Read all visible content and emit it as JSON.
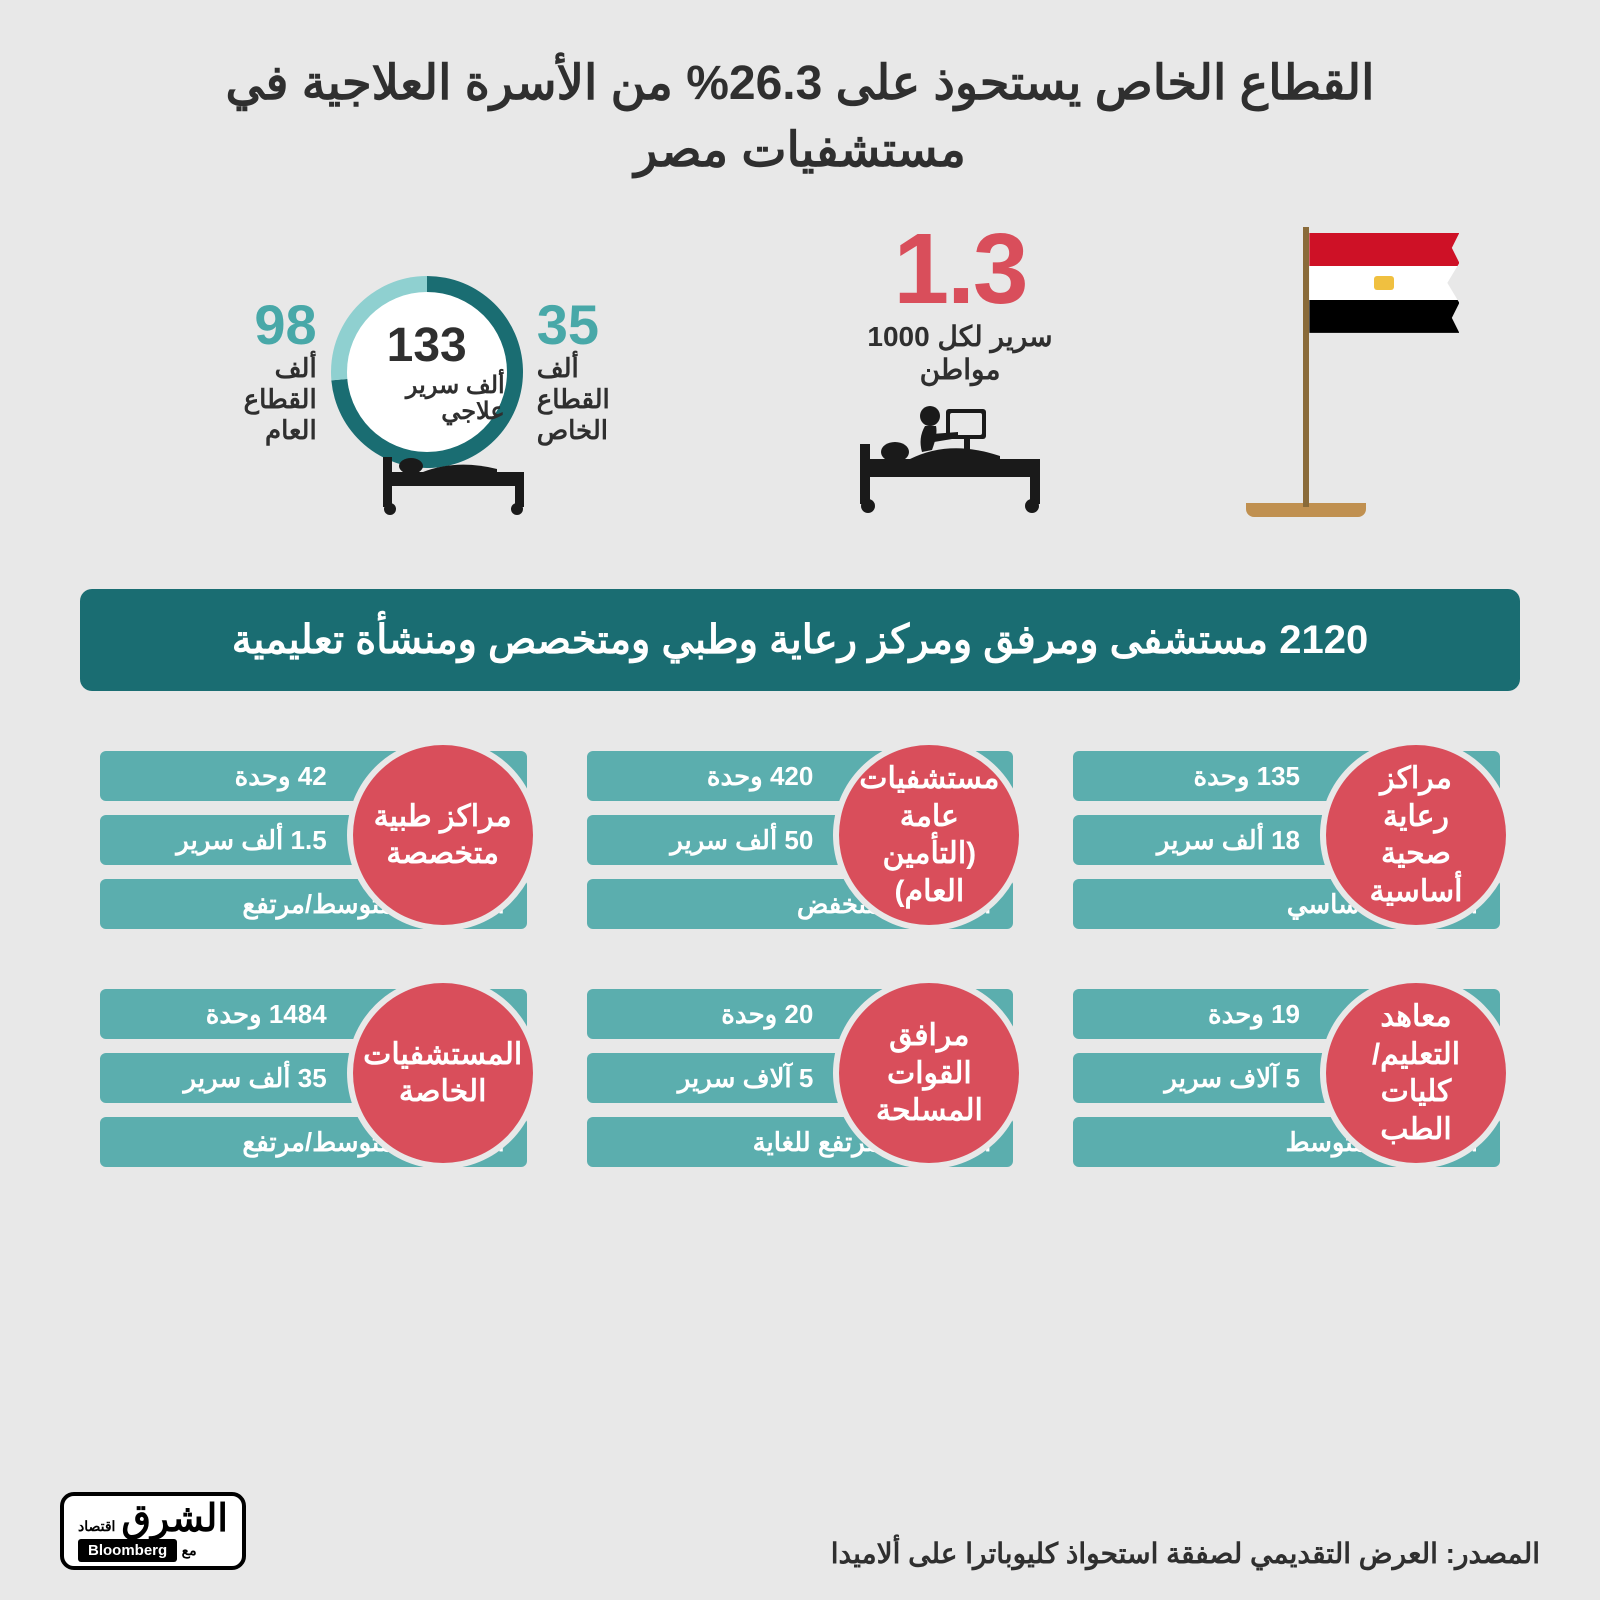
{
  "colors": {
    "background": "#e8e8e8",
    "title_text": "#2f2f2f",
    "accent_red": "#d94e5b",
    "teal_bar": "#5baeae",
    "banner_teal": "#1a6d72",
    "donut_teal": "#48a8a8",
    "donut_dark_teal": "#1a6d72",
    "donut_light": "#8fd0d0"
  },
  "title": "القطاع الخاص يستحوذ على 26.3% من الأسرة العلاجية في مستشفيات مصر",
  "hero": {
    "big_stat_value": "1.3",
    "big_stat_label_line1": "سرير لكل 1000",
    "big_stat_label_line2": "مواطن",
    "donut": {
      "center_value": "133",
      "center_label": "ألف سرير علاجي",
      "right_value": "98",
      "right_label": "ألف القطاع العام",
      "left_value": "35",
      "left_label": "ألف القطاع الخاص",
      "public_share_deg": 265,
      "private_share_deg": 95
    }
  },
  "banner": "2120 مستشفى ومرفق ومركز رعاية وطبي ومتخصص ومنشأة تعليمية",
  "cards": [
    {
      "title": "مراكز رعاية صحية أساسية",
      "row1": "135 وحدة",
      "row2": "18 ألف سرير",
      "row3": "المستوى: أساسي"
    },
    {
      "title": "مستشفيات عامة (التأمين العام)",
      "row1": "420 وحدة",
      "row2": "50 ألف سرير",
      "row3": "المستوى: منخفض"
    },
    {
      "title": "مراكز طبية متخصصة",
      "row1": "42 وحدة",
      "row2": "1.5 ألف سرير",
      "row3": "المستوى: متوسط/مرتفع"
    },
    {
      "title": "معاهد التعليم/كليات الطب",
      "row1": "19 وحدة",
      "row2": "5 آلاف سرير",
      "row3": "المستوى: متوسط"
    },
    {
      "title": "مرافق القوات المسلحة",
      "row1": "20 وحدة",
      "row2": "5 آلاف سرير",
      "row3": "المستوى: مرتفع للغاية"
    },
    {
      "title": "المستشفيات الخاصة",
      "row1": "1484 وحدة",
      "row2": "35 ألف سرير",
      "row3": "المستوى: متوسط/مرتفع"
    }
  ],
  "source": "المصدر: العرض التقديمي لصفقة استحواذ كليوباترا على ألاميدا",
  "logo": {
    "ar": "الشرق",
    "sub": "اقتصاد",
    "partner_prefix": "مع",
    "partner": "Bloomberg"
  }
}
